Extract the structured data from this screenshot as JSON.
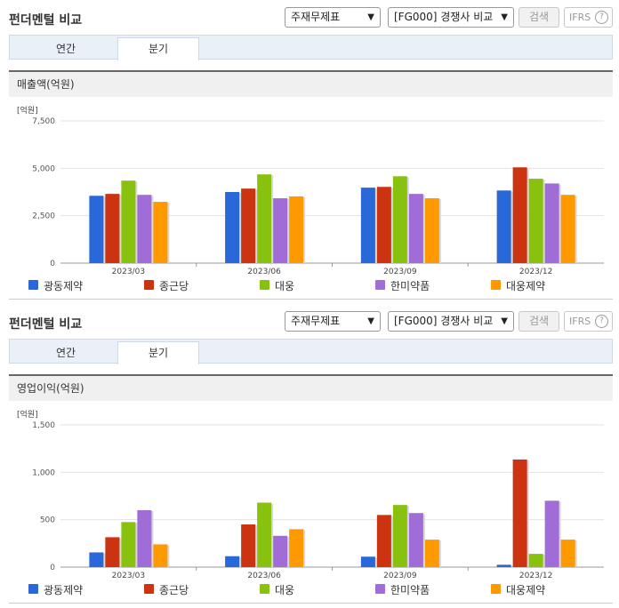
{
  "colors": [
    "#2868d8",
    "#cc3311",
    "#88c20f",
    "#a06dd8",
    "#ff9900"
  ],
  "panels": [
    {
      "title": "펀더멘털 비교",
      "select1": "주재무제표",
      "select2": "[FG000] 경쟁사 비교",
      "search_label": "검색",
      "ifrs_label": "IFRS",
      "help_icon": "?",
      "tabs": [
        "연간",
        "분기"
      ],
      "subtitle": "매출액(억원)",
      "unit": "[억원]",
      "legend": [
        "광동제약",
        "종근당",
        "대웅",
        "한미약품",
        "대웅제약"
      ]
    },
    {
      "title": "펀더멘털 비교",
      "select1": "주재무제표",
      "select2": "[FG000] 경쟁사 비교",
      "search_label": "검색",
      "ifrs_label": "IFRS",
      "help_icon": "?",
      "tabs": [
        "연간",
        "분기"
      ],
      "subtitle": "영업이익(억원)",
      "unit": "[억원]",
      "legend": [
        "광동제약",
        "종근당",
        "대웅",
        "한미약품",
        "대웅제약"
      ]
    }
  ],
  "chart_data": [
    {
      "type": "bar",
      "title": "매출액(억원)",
      "ylabel": "[억원]",
      "categories": [
        "2023/03",
        "2023/06",
        "2023/09",
        "2023/12"
      ],
      "ylim": [
        0,
        7500
      ],
      "yticks": [
        "0",
        "2,500",
        "5,000",
        "7,500"
      ],
      "ytick_values": [
        0,
        2500,
        5000,
        7500
      ],
      "grid": true,
      "legend_position": "bottom",
      "series": [
        {
          "name": "광동제약",
          "values": [
            3550,
            3750,
            3980,
            3830
          ]
        },
        {
          "name": "종근당",
          "values": [
            3650,
            3930,
            4020,
            5050
          ]
        },
        {
          "name": "대웅",
          "values": [
            4350,
            4680,
            4580,
            4450
          ]
        },
        {
          "name": "한미약품",
          "values": [
            3600,
            3420,
            3650,
            4200
          ]
        },
        {
          "name": "대웅제약",
          "values": [
            3230,
            3520,
            3420,
            3600
          ]
        }
      ]
    },
    {
      "type": "bar",
      "title": "영업이익(억원)",
      "ylabel": "[억원]",
      "categories": [
        "2023/03",
        "2023/06",
        "2023/09",
        "2023/12"
      ],
      "ylim": [
        0,
        1500
      ],
      "yticks": [
        "0",
        "500",
        "1,000",
        "1,500"
      ],
      "ytick_values": [
        0,
        500,
        1000,
        1500
      ],
      "grid": true,
      "legend_position": "bottom",
      "series": [
        {
          "name": "광동제약",
          "values": [
            155,
            115,
            110,
            25
          ]
        },
        {
          "name": "종근당",
          "values": [
            315,
            450,
            550,
            1135
          ]
        },
        {
          "name": "대웅",
          "values": [
            475,
            680,
            655,
            140
          ]
        },
        {
          "name": "한미약품",
          "values": [
            600,
            330,
            570,
            700
          ]
        },
        {
          "name": "대웅제약",
          "values": [
            240,
            400,
            290,
            290
          ]
        }
      ]
    }
  ]
}
